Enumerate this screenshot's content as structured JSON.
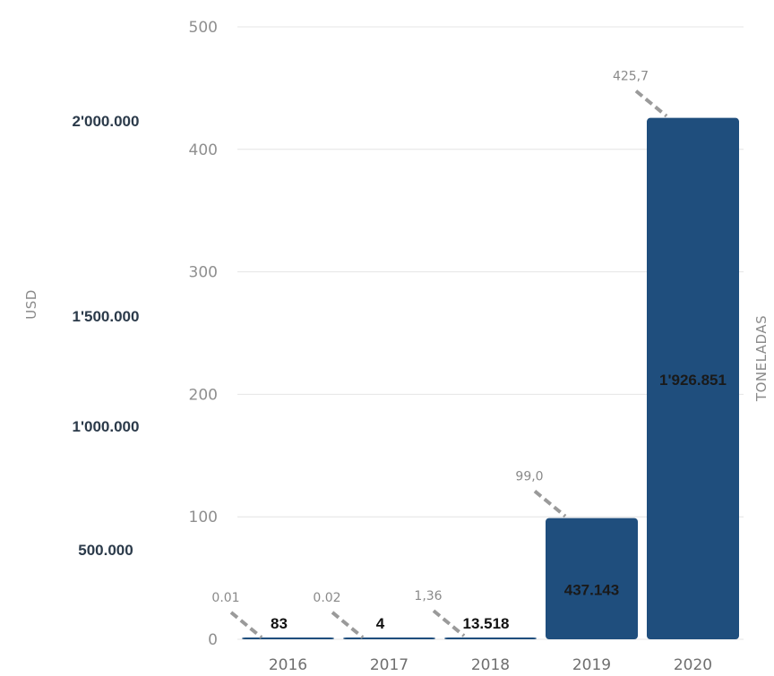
{
  "chart_data": {
    "type": "bar",
    "categories": [
      "2016",
      "2017",
      "2018",
      "2019",
      "2020"
    ],
    "series": [
      {
        "values": [
          0.01,
          0.02,
          1.36,
          99.0,
          425.7
        ]
      }
    ],
    "usd_values": [
      "83",
      "4",
      "13.518",
      "437.143",
      "1'926.851"
    ],
    "value_annotations": [
      "0.01",
      "0.02",
      "1,36",
      "99,0",
      "425,7"
    ],
    "right_axis": {
      "label": "TONELADAS",
      "ticks": [
        "0",
        "100",
        "200",
        "300",
        "400",
        "500"
      ],
      "ylim": [
        0,
        500
      ]
    },
    "left_axis": {
      "label": "USD",
      "ticks": [
        "500.000",
        "1'000.000",
        "1'500.000",
        "2'000.000"
      ]
    },
    "grid": true,
    "colors": {
      "bar": "#1f4e7d",
      "grid": "#e4e4e4",
      "leader": "#9a9a9a",
      "label_inside": "#1a1a1a",
      "label_outside": "#111111"
    }
  }
}
